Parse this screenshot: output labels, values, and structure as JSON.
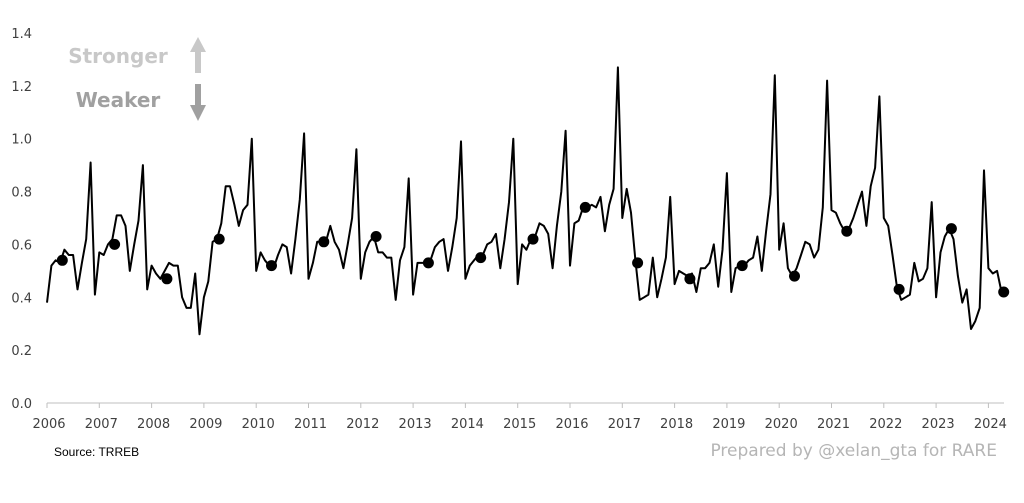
{
  "chart_data": {
    "type": "line",
    "ylim": [
      0,
      1.4
    ],
    "y_ticks": [
      "0.0",
      "0.2",
      "0.4",
      "0.6",
      "0.8",
      "1.0",
      "1.2",
      "1.4"
    ],
    "x_ticks": [
      "2006",
      "2007",
      "2008",
      "2009",
      "2010",
      "2011",
      "2012",
      "2013",
      "2014",
      "2015",
      "2016",
      "2017",
      "2018",
      "2019",
      "2020",
      "2021",
      "2022",
      "2023",
      "2024"
    ],
    "grid": false,
    "legend": {
      "stronger": "Stronger",
      "weaker": "Weaker",
      "placement": "top-left"
    },
    "series": [
      {
        "values": [
          0.38,
          0.52,
          0.54,
          0.53,
          0.58,
          0.56,
          0.56,
          0.43,
          0.53,
          0.62,
          0.91,
          0.41,
          0.57,
          0.56,
          0.6,
          0.62,
          0.71,
          0.71,
          0.67,
          0.5,
          0.6,
          0.69,
          0.9,
          0.43,
          0.52,
          0.49,
          0.47,
          0.5,
          0.53,
          0.52,
          0.52,
          0.4,
          0.36,
          0.36,
          0.49,
          0.26,
          0.4,
          0.46,
          0.61,
          0.62,
          0.68,
          0.82,
          0.82,
          0.75,
          0.67,
          0.73,
          0.75,
          1.0,
          0.5,
          0.57,
          0.54,
          0.52,
          0.51,
          0.56,
          0.6,
          0.59,
          0.49,
          0.62,
          0.77,
          1.02,
          0.47,
          0.53,
          0.61,
          0.61,
          0.61,
          0.67,
          0.61,
          0.58,
          0.51,
          0.6,
          0.7,
          0.96,
          0.47,
          0.57,
          0.61,
          0.63,
          0.57,
          0.57,
          0.55,
          0.55,
          0.39,
          0.54,
          0.59,
          0.85,
          0.41,
          0.53,
          0.53,
          0.53,
          0.54,
          0.59,
          0.61,
          0.62,
          0.5,
          0.59,
          0.7,
          0.99,
          0.47,
          0.52,
          0.54,
          0.56,
          0.56,
          0.6,
          0.61,
          0.64,
          0.51,
          0.62,
          0.76,
          1.0,
          0.45,
          0.6,
          0.58,
          0.62,
          0.63,
          0.68,
          0.67,
          0.64,
          0.51,
          0.67,
          0.8,
          1.03,
          0.52,
          0.68,
          0.69,
          0.74,
          0.74,
          0.75,
          0.74,
          0.78,
          0.65,
          0.75,
          0.81,
          1.27,
          0.7,
          0.81,
          0.72,
          0.54,
          0.39,
          0.4,
          0.41,
          0.55,
          0.4,
          0.47,
          0.55,
          0.78,
          0.45,
          0.5,
          0.49,
          0.48,
          0.49,
          0.42,
          0.51,
          0.51,
          0.53,
          0.6,
          0.44,
          0.58,
          0.87,
          0.42,
          0.51,
          0.52,
          0.52,
          0.54,
          0.55,
          0.63,
          0.5,
          0.65,
          0.79,
          1.24,
          0.58,
          0.68,
          0.51,
          0.48,
          0.51,
          0.56,
          0.61,
          0.6,
          0.55,
          0.58,
          0.74,
          1.22,
          0.73,
          0.72,
          0.68,
          0.65,
          0.66,
          0.7,
          0.75,
          0.8,
          0.67,
          0.82,
          0.89,
          1.16,
          0.7,
          0.67,
          0.56,
          0.44,
          0.39,
          0.4,
          0.41,
          0.53,
          0.46,
          0.47,
          0.51,
          0.76,
          0.4,
          0.57,
          0.63,
          0.66,
          0.62,
          0.48,
          0.38,
          0.43,
          0.28,
          0.31,
          0.36,
          0.88,
          0.51,
          0.49,
          0.5,
          0.42
        ],
        "annual_average": [
          0.54,
          0.6,
          0.47,
          0.62,
          0.52,
          0.61,
          0.63,
          0.53,
          0.55,
          0.62,
          0.74,
          0.53,
          0.47,
          0.52,
          0.48,
          0.65,
          0.43,
          0.66,
          0.42
        ]
      }
    ]
  },
  "footer": {
    "source": "Source: TRREB",
    "credit": "Prepared by @xelan_gta for RARE"
  },
  "colors": {
    "line": "#000000",
    "axis": "#bfbfbf",
    "legend_stronger": "#c8c8c8",
    "legend_weaker": "#a0a0a0"
  }
}
